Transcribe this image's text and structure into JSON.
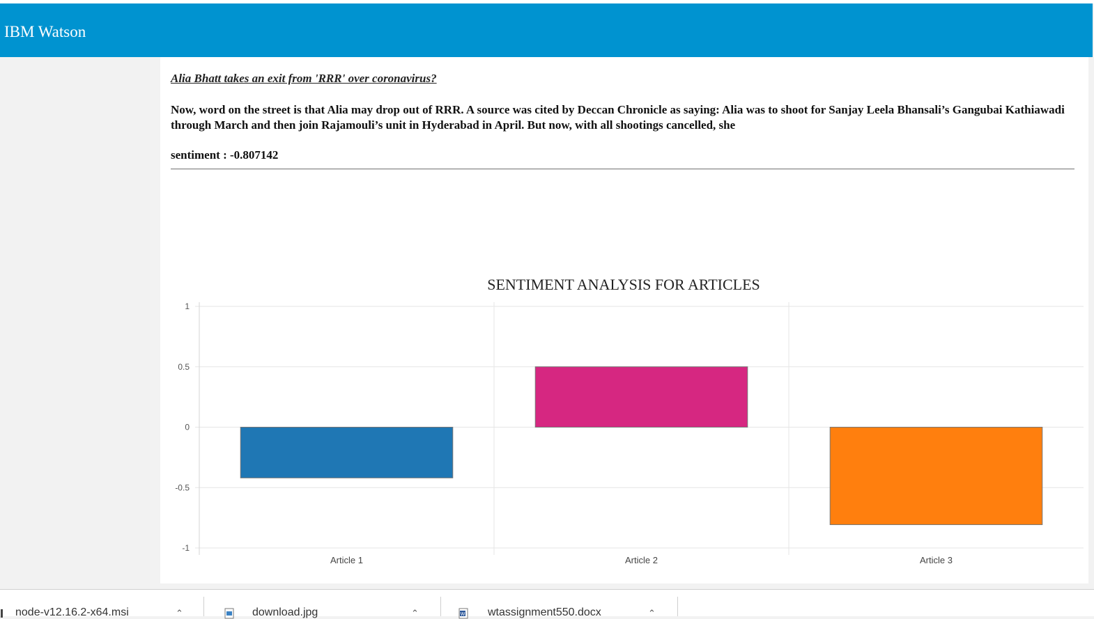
{
  "header": {
    "title": "IBM Watson",
    "color": "#0093d0"
  },
  "article": {
    "title": "Alia Bhatt takes an exit from 'RRR' over coronavirus?",
    "body": "Now, word on the street is that Alia may drop out of RRR. A source was cited by Deccan Chronicle as saying: Alia was to shoot for Sanjay Leela Bhansali’s Gangubai Kathiawadi through March and then join Rajamouli’s unit in Hyderabad in April. But now, with all shootings cancelled, she",
    "sentiment_label": "sentiment : -0.807142"
  },
  "chart_data": {
    "type": "bar",
    "title": "SENTIMENT ANALYSIS FOR ARTICLES",
    "categories": [
      "Article 1",
      "Article 2",
      "Article 3"
    ],
    "values": [
      -0.42,
      0.5,
      -0.807142
    ],
    "colors": [
      "#1f77b4",
      "#d62781",
      "#ff7f0e"
    ],
    "ylim": [
      -1,
      1
    ],
    "yticks": [
      "1",
      "0.5",
      "0",
      "-0.5",
      "-1"
    ],
    "xlabel": "",
    "ylabel": "",
    "grid": true,
    "legend": "none"
  },
  "downloads": {
    "items": [
      {
        "name": "node-v12.16.2-x64.msi",
        "icon": "msi-installer-icon"
      },
      {
        "name": "download.jpg",
        "icon": "image-file-icon"
      },
      {
        "name": "wtassignment550.docx",
        "icon": "word-document-icon"
      }
    ]
  }
}
